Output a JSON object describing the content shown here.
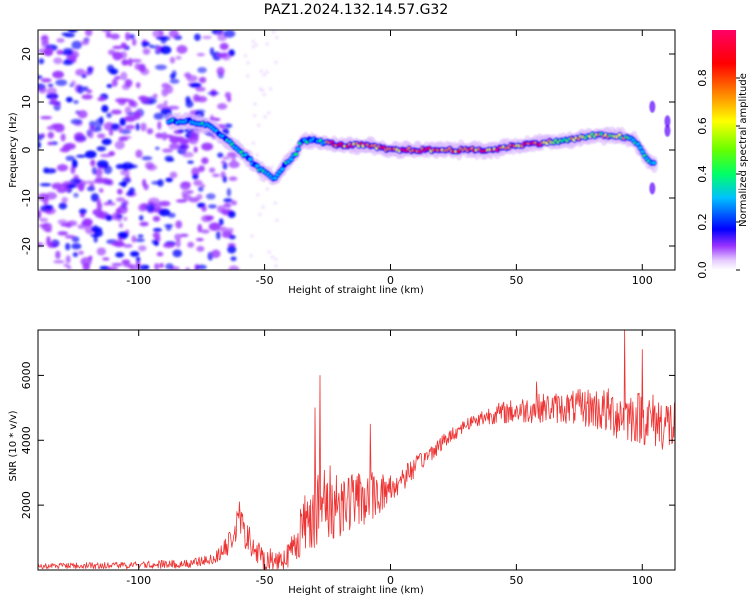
{
  "title": "PAZ1.2024.132.14.57.G32",
  "chart_data": [
    {
      "type": "heatmap",
      "xlabel": "Height of straight line (km)",
      "ylabel": "Frequency (Hz)",
      "xlim": [
        -140,
        113
      ],
      "ylim": [
        -25,
        25
      ],
      "xticks": [
        -100,
        -50,
        0,
        50,
        100
      ],
      "yticks": [
        -20,
        -10,
        0,
        10,
        20
      ],
      "xticklabels": [
        "-100",
        "-50",
        "0",
        "50",
        "100"
      ],
      "yticklabels": [
        "-20",
        "-10",
        "0",
        "10",
        "20"
      ],
      "colorbar": {
        "label": "Normalized spectral amplitude",
        "range": [
          0,
          1
        ],
        "ticks": [
          0.0,
          0.2,
          0.4,
          0.6,
          0.8
        ],
        "ticklabels": [
          "0.0",
          "0.2",
          "0.4",
          "0.6",
          "0.8"
        ],
        "colormap": "gist_rainbow_r (white to magenta, blue, cyan, green, yellow, orange, red, pink)"
      },
      "ridge": {
        "description": "dominant frequency track",
        "x": [
          -88,
          -80,
          -72,
          -65,
          -58,
          -52,
          -46,
          -42,
          -38,
          -35,
          -30,
          -20,
          -10,
          0,
          10,
          20,
          30,
          40,
          50,
          60,
          70,
          80,
          90,
          97,
          102,
          105
        ],
        "y": [
          6,
          6,
          5,
          2,
          -1,
          -4,
          -6,
          -3,
          -1,
          2,
          2,
          1,
          1,
          0,
          0,
          0,
          0,
          0,
          1,
          1.5,
          2,
          3,
          3,
          2,
          -2,
          -3
        ]
      },
      "noise_region_x": [
        -140,
        -70
      ],
      "grid": false
    },
    {
      "type": "line",
      "xlabel": "Height of straight line (km)",
      "ylabel": "SNR (10 * v/v)",
      "xlim": [
        -140,
        113
      ],
      "ylim": [
        0,
        7400
      ],
      "xticks": [
        -100,
        -50,
        0,
        50,
        100
      ],
      "yticks": [
        2000,
        4000,
        6000
      ],
      "xticklabels": [
        "-100",
        "-50",
        "0",
        "50",
        "100"
      ],
      "yticklabels": [
        "2000",
        "4000",
        "6000"
      ],
      "color": "#ee3333",
      "envelope": {
        "x": [
          -140,
          -100,
          -80,
          -70,
          -65,
          -60,
          -55,
          -50,
          -45,
          -40,
          -35,
          -30,
          -25,
          -20,
          -10,
          0,
          10,
          20,
          30,
          40,
          50,
          60,
          70,
          80,
          90,
          100,
          110,
          113
        ],
        "y": [
          120,
          150,
          200,
          350,
          700,
          1500,
          700,
          250,
          300,
          500,
          1300,
          2000,
          2000,
          2100,
          2200,
          2500,
          3200,
          3900,
          4500,
          4800,
          4900,
          5000,
          5000,
          5000,
          4800,
          4700,
          4500,
          4400
        ]
      },
      "noise_amplitude": {
        "x": [
          -140,
          -70,
          -60,
          -40,
          -30,
          -10,
          10,
          30,
          50,
          70,
          90,
          113
        ],
        "y": [
          80,
          150,
          500,
          400,
          1400,
          800,
          300,
          200,
          400,
          500,
          800,
          900
        ]
      },
      "peaks": {
        "x": [
          -60,
          -30,
          -28,
          -8,
          58,
          93,
          100
        ],
        "y": [
          2100,
          5000,
          6000,
          4500,
          5800,
          7400,
          6800
        ]
      },
      "grid": false
    }
  ]
}
